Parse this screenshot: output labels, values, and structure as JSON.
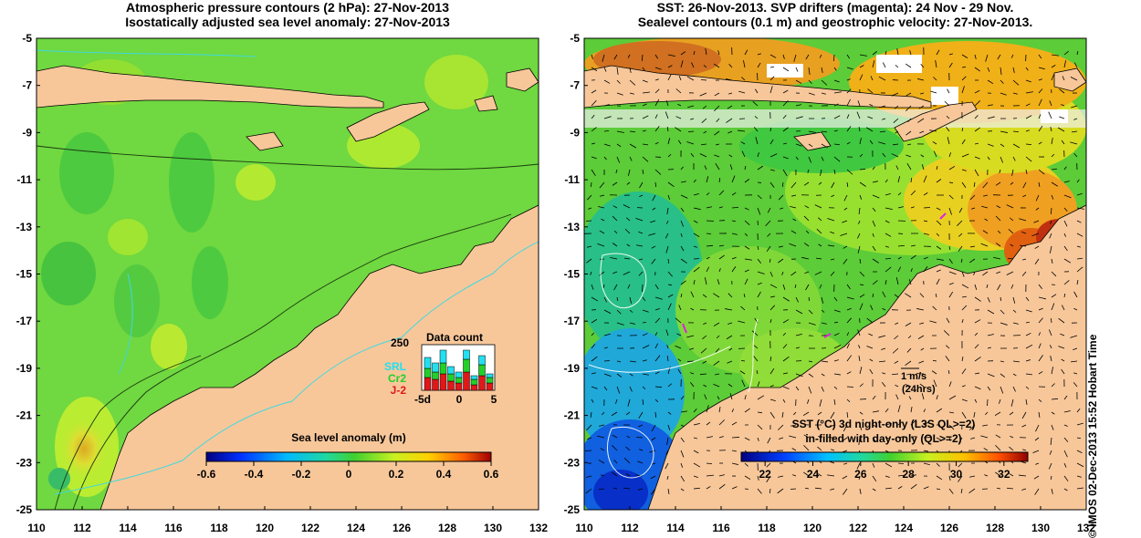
{
  "left_panel": {
    "title_line1": "Atmospheric pressure contours (2 hPa): 27-Nov-2013",
    "title_line2": "Isostatically adjusted sea level anomaly: 27-Nov-2013",
    "colorbar_title": "Sea level anomaly (m)",
    "colorbar_ticks": [
      "-0.6",
      "-0.4",
      "-0.2",
      "0",
      "0.2",
      "0.4",
      "0.6"
    ],
    "colorbar_range": [
      -0.6,
      0.6
    ],
    "data_count": {
      "title": "Data count",
      "ymax_label": "250",
      "xticks": [
        "-5d",
        "0",
        "5"
      ],
      "legend": [
        {
          "label": "SRL",
          "color": "#22e0f0"
        },
        {
          "label": "Cr2",
          "color": "#22d02a"
        },
        {
          "label": "J-2",
          "color": "#e01818"
        }
      ]
    }
  },
  "right_panel": {
    "title_line1": "SST: 26-Nov-2013. SVP drifters (magenta): 24 Nov - 29 Nov.",
    "title_line2": "Sealevel contours (0.1 m) and geostrophic velocity: 27-Nov-2013.",
    "velocity_scale_label": "1 m/s",
    "velocity_scale_sub": "(24hrs)",
    "colorbar_title_line1": "SST (°C)  3d night-only (L3S QL>=2)",
    "colorbar_title_line2": "in-filled with day-only (QL>=2)",
    "colorbar_ticks": [
      "22",
      "24",
      "26",
      "28",
      "30",
      "32"
    ],
    "colorbar_range": [
      21,
      33
    ]
  },
  "axes": {
    "lat_ticks": [
      "-5",
      "-7",
      "-9",
      "-11",
      "-13",
      "-15",
      "-17",
      "-19",
      "-21",
      "-23",
      "-25"
    ],
    "lon_ticks": [
      "110",
      "112",
      "114",
      "116",
      "118",
      "120",
      "122",
      "124",
      "126",
      "128",
      "130",
      "132"
    ]
  },
  "credit": "© IMOS 02-Dec-2013 15:52 Hobart Time",
  "colors": {
    "land": "#f7c79a",
    "ocean_sla": "#7fd840",
    "ocean_sst": "#50d03a"
  }
}
